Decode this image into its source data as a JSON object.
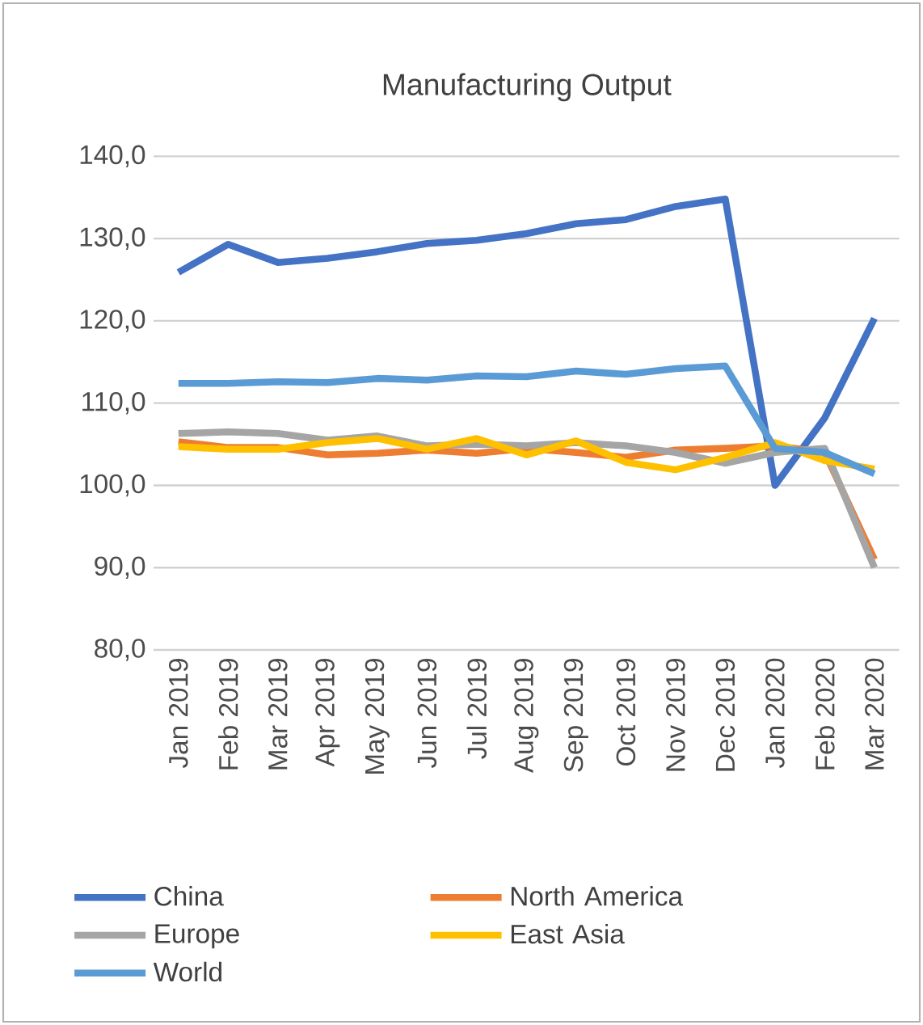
{
  "chart_data": {
    "type": "line",
    "title": "Manufacturing Output",
    "categories": [
      "Jan 2019",
      "Feb 2019",
      "Mar 2019",
      "Apr 2019",
      "May 2019",
      "Jun 2019",
      "Jul 2019",
      "Aug 2019",
      "Sep 2019",
      "Oct 2019",
      "Nov 2019",
      "Dec 2019",
      "Jan 2020",
      "Feb 2020",
      "Mar 2020"
    ],
    "series": [
      {
        "name": "China",
        "color": "#4472c4",
        "values": [
          125.9,
          129.3,
          127.1,
          127.6,
          128.4,
          129.4,
          129.8,
          130.6,
          131.8,
          132.3,
          133.9,
          134.8,
          100.0,
          108.2,
          120.3
        ]
      },
      {
        "name": "North America",
        "color": "#ed7d31",
        "values": [
          105.3,
          104.6,
          104.6,
          103.7,
          103.9,
          104.3,
          103.9,
          104.5,
          104.0,
          103.4,
          104.3,
          104.5,
          104.8,
          104.0,
          91.0
        ]
      },
      {
        "name": "Europe",
        "color": "#a5a5a5",
        "values": [
          106.3,
          106.5,
          106.3,
          105.5,
          106.0,
          104.8,
          105.0,
          104.8,
          105.2,
          104.8,
          104.0,
          102.7,
          104.0,
          104.5,
          90.0
        ]
      },
      {
        "name": "East Asia",
        "color": "#ffc000",
        "values": [
          104.7,
          104.4,
          104.4,
          105.2,
          105.7,
          104.4,
          105.7,
          103.7,
          105.4,
          102.8,
          101.9,
          103.4,
          105.2,
          103.0,
          102.0
        ]
      },
      {
        "name": "World",
        "color": "#5b9bd5",
        "values": [
          112.4,
          112.4,
          112.6,
          112.5,
          113.0,
          112.8,
          113.3,
          113.2,
          113.9,
          113.5,
          114.2,
          114.5,
          104.5,
          104.0,
          101.4
        ]
      }
    ],
    "ylim": [
      80,
      140
    ],
    "yticks": [
      {
        "value": 80,
        "label": "80,0"
      },
      {
        "value": 90,
        "label": "90,0"
      },
      {
        "value": 100,
        "label": "100,0"
      },
      {
        "value": 110,
        "label": "110,0"
      },
      {
        "value": 120,
        "label": "120,0"
      },
      {
        "value": 130,
        "label": "130,0"
      },
      {
        "value": 140,
        "label": "140,0"
      }
    ],
    "grid": "y",
    "legend": "bottom",
    "line_style": "solid"
  }
}
